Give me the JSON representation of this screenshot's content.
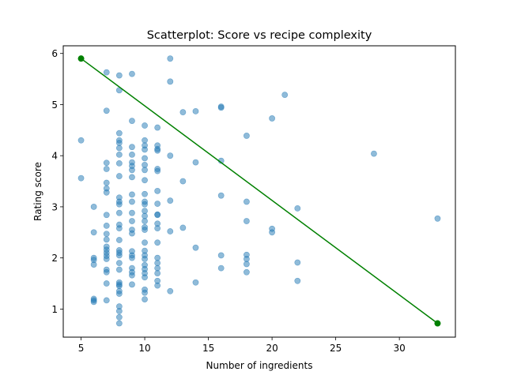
{
  "chart_data": {
    "type": "scatter",
    "title": "Scatterplot: Score vs recipe complexity",
    "xlabel": "Number of ingredients",
    "ylabel": "Rating score",
    "xlim": [
      3.6,
      34.4
    ],
    "ylim": [
      0.45,
      6.15
    ],
    "xticks": [
      5,
      10,
      15,
      20,
      25,
      30
    ],
    "yticks": [
      1,
      2,
      3,
      4,
      5,
      6
    ],
    "grid": false,
    "colors": {
      "points": "#1f77b4",
      "line": "#008000",
      "axes": "#000000"
    },
    "series": [
      {
        "type": "scatter",
        "points": [
          [
            5,
            4.3
          ],
          [
            5,
            3.56
          ],
          [
            6,
            3.0
          ],
          [
            6,
            2.5
          ],
          [
            6,
            2.0
          ],
          [
            6,
            1.96
          ],
          [
            6,
            1.87
          ],
          [
            6,
            1.2
          ],
          [
            6,
            1.17
          ],
          [
            6,
            1.14
          ],
          [
            7,
            5.63
          ],
          [
            7,
            4.88
          ],
          [
            7,
            3.86
          ],
          [
            7,
            3.74
          ],
          [
            7,
            3.47
          ],
          [
            7,
            3.36
          ],
          [
            7,
            3.28
          ],
          [
            7,
            2.84
          ],
          [
            7,
            2.63
          ],
          [
            7,
            2.47
          ],
          [
            7,
            2.36
          ],
          [
            7,
            2.22
          ],
          [
            7,
            2.16
          ],
          [
            7,
            2.1
          ],
          [
            7,
            2.04
          ],
          [
            7,
            1.98
          ],
          [
            7,
            1.77
          ],
          [
            7,
            1.72
          ],
          [
            7,
            1.5
          ],
          [
            7,
            1.17
          ],
          [
            8,
            5.57
          ],
          [
            8,
            5.28
          ],
          [
            8,
            4.44
          ],
          [
            8,
            4.3
          ],
          [
            8,
            4.25
          ],
          [
            8,
            4.15
          ],
          [
            8,
            4.02
          ],
          [
            8,
            3.85
          ],
          [
            8,
            3.6
          ],
          [
            8,
            3.18
          ],
          [
            8,
            3.1
          ],
          [
            8,
            3.05
          ],
          [
            8,
            2.88
          ],
          [
            8,
            2.65
          ],
          [
            8,
            2.58
          ],
          [
            8,
            2.35
          ],
          [
            8,
            2.15
          ],
          [
            8,
            2.1
          ],
          [
            8,
            2.05
          ],
          [
            8,
            1.9
          ],
          [
            8,
            1.77
          ],
          [
            8,
            1.52
          ],
          [
            8,
            1.48
          ],
          [
            8,
            1.45
          ],
          [
            8,
            1.35
          ],
          [
            8,
            1.3
          ],
          [
            8,
            1.05
          ],
          [
            8,
            0.96
          ],
          [
            8,
            0.84
          ],
          [
            8,
            0.72
          ],
          [
            9,
            5.6
          ],
          [
            9,
            4.68
          ],
          [
            9,
            4.17
          ],
          [
            9,
            4.02
          ],
          [
            9,
            3.87
          ],
          [
            9,
            3.8
          ],
          [
            9,
            3.72
          ],
          [
            9,
            3.58
          ],
          [
            9,
            3.24
          ],
          [
            9,
            3.1
          ],
          [
            9,
            2.88
          ],
          [
            9,
            2.72
          ],
          [
            9,
            2.55
          ],
          [
            9,
            2.48
          ],
          [
            9,
            2.13
          ],
          [
            9,
            2.05
          ],
          [
            9,
            2.0
          ],
          [
            9,
            1.8
          ],
          [
            9,
            1.72
          ],
          [
            9,
            1.66
          ],
          [
            9,
            1.48
          ],
          [
            10,
            4.59
          ],
          [
            10,
            4.3
          ],
          [
            10,
            4.2
          ],
          [
            10,
            4.12
          ],
          [
            10,
            3.95
          ],
          [
            10,
            3.82
          ],
          [
            10,
            3.72
          ],
          [
            10,
            3.52
          ],
          [
            10,
            3.25
          ],
          [
            10,
            3.1
          ],
          [
            10,
            3.05
          ],
          [
            10,
            2.92
          ],
          [
            10,
            2.82
          ],
          [
            10,
            2.72
          ],
          [
            10,
            2.6
          ],
          [
            10,
            2.55
          ],
          [
            10,
            2.3
          ],
          [
            10,
            2.14
          ],
          [
            10,
            2.05
          ],
          [
            10,
            1.98
          ],
          [
            10,
            1.86
          ],
          [
            10,
            1.78
          ],
          [
            10,
            1.7
          ],
          [
            10,
            1.62
          ],
          [
            10,
            1.38
          ],
          [
            10,
            1.32
          ],
          [
            10,
            1.19
          ],
          [
            11,
            4.55
          ],
          [
            11,
            4.2
          ],
          [
            11,
            4.13
          ],
          [
            11,
            4.1
          ],
          [
            11,
            3.74
          ],
          [
            11,
            3.7
          ],
          [
            11,
            3.31
          ],
          [
            11,
            3.06
          ],
          [
            11,
            2.85
          ],
          [
            11,
            2.84
          ],
          [
            11,
            2.67
          ],
          [
            11,
            2.58
          ],
          [
            11,
            2.3
          ],
          [
            11,
            2.0
          ],
          [
            11,
            1.9
          ],
          [
            11,
            1.8
          ],
          [
            11,
            1.7
          ],
          [
            11,
            1.55
          ],
          [
            11,
            1.46
          ],
          [
            12,
            5.9
          ],
          [
            12,
            5.45
          ],
          [
            12,
            4.0
          ],
          [
            12,
            3.12
          ],
          [
            12,
            2.52
          ],
          [
            12,
            1.35
          ],
          [
            13,
            4.85
          ],
          [
            13,
            3.5
          ],
          [
            13,
            2.59
          ],
          [
            14,
            4.87
          ],
          [
            14,
            3.87
          ],
          [
            14,
            2.2
          ],
          [
            14,
            1.52
          ],
          [
            16,
            4.96
          ],
          [
            16,
            4.94
          ],
          [
            16,
            3.9
          ],
          [
            16,
            3.22
          ],
          [
            16,
            2.05
          ],
          [
            16,
            1.8
          ],
          [
            18,
            4.39
          ],
          [
            18,
            3.1
          ],
          [
            18,
            2.72
          ],
          [
            18,
            2.06
          ],
          [
            18,
            1.98
          ],
          [
            18,
            1.88
          ],
          [
            18,
            1.72
          ],
          [
            20,
            4.73
          ],
          [
            20,
            2.57
          ],
          [
            20,
            2.5
          ],
          [
            21,
            5.19
          ],
          [
            22,
            2.97
          ],
          [
            22,
            1.91
          ],
          [
            22,
            1.55
          ],
          [
            28,
            4.04
          ],
          [
            33,
            2.77
          ]
        ]
      },
      {
        "type": "line",
        "points": [
          [
            5,
            5.9
          ],
          [
            33,
            0.72
          ]
        ]
      }
    ]
  }
}
